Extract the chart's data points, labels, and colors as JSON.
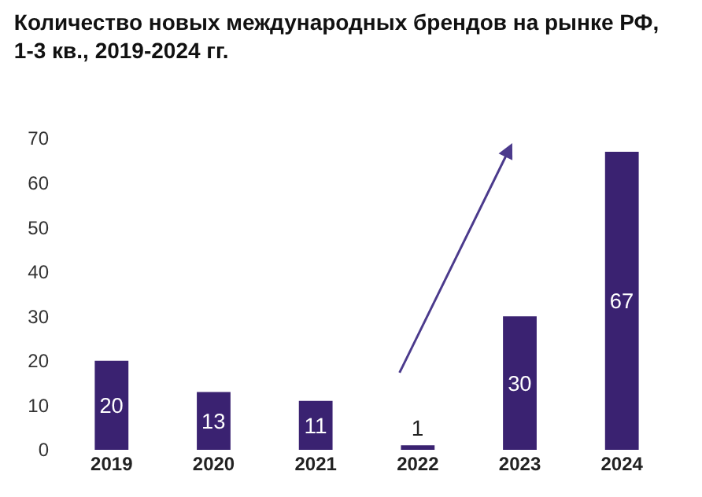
{
  "chart_data": {
    "type": "bar",
    "title": "Количество новых международных брендов на рынке РФ,\n1-3 кв., 2019-2024 гг.",
    "categories": [
      "2019",
      "2020",
      "2021",
      "2022",
      "2023",
      "2024"
    ],
    "values": [
      20,
      13,
      11,
      1,
      30,
      67
    ],
    "color": "#3a2271",
    "ylim": [
      0,
      70
    ],
    "yticks": [
      0,
      10,
      20,
      30,
      40,
      50,
      60,
      70
    ],
    "data_labels": true
  }
}
